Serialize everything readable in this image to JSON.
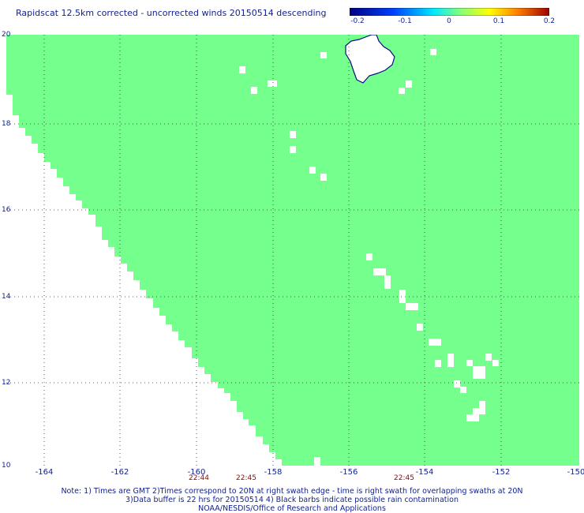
{
  "title": "Rapidscat 12.5km corrected - uncorrected winds 20150514 descending",
  "colorbar": {
    "tick_labels": [
      "-0.2",
      "-0.1",
      "0",
      "0.1",
      "0.2"
    ],
    "range": [
      -0.2,
      0.2
    ],
    "colors": [
      "#0000b0",
      "#0040ff",
      "#00e8ff",
      "#80ff80",
      "#ffff00",
      "#ff8000",
      "#b00000"
    ]
  },
  "map": {
    "lon_range": [
      -165,
      -150
    ],
    "lat_range": [
      10,
      20
    ],
    "lon_tick_labels": [
      "-164",
      "-162",
      "-160",
      "-158",
      "-156",
      "-154",
      "-152",
      "-150"
    ],
    "lat_tick_labels": [
      "20",
      "18",
      "16",
      "14",
      "12",
      "10"
    ],
    "swath_color": "#75ff8c",
    "grid": true,
    "coastline_color": "#0a0a8a"
  },
  "time_labels": [
    {
      "text": "22:44",
      "lon": -160.1
    },
    {
      "text": "22:45",
      "lon": -159.1
    },
    {
      "text": "22:45",
      "lon": -154.6
    }
  ],
  "notes": {
    "line1": "Note: 1) Times are GMT 2)Times correspond to 20N at right swath edge - time is right swath for overlapping swaths at 20N",
    "line2": "3)Data buffer is 22 hrs for 20150514 4) Black barbs indicate possible rain contamination",
    "line3": "NOAA/NESDIS/Office of Research and Applications"
  }
}
